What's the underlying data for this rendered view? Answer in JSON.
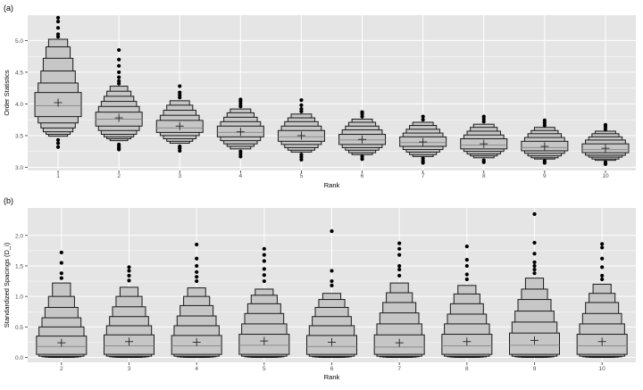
{
  "chart_data": [
    {
      "panel_label": "(a)",
      "type": "letter-value-boxplot",
      "xlabel": "Rank",
      "ylabel": "Order Statistics",
      "categories": [
        "1",
        "2",
        "3",
        "4",
        "5",
        "6",
        "7",
        "8",
        "9",
        "10"
      ],
      "ylim": [
        2.95,
        5.4
      ],
      "yticks": [
        "3.0",
        "3.5",
        "4.0",
        "4.5",
        "5.0"
      ],
      "grid": true,
      "colors": {
        "panel_bg": "#e5e5e5",
        "grid": "#ffffff",
        "box_fill": "#c6c6c6",
        "outline": "#1a1a1a",
        "median": "#8c8c8c"
      },
      "groups": [
        {
          "category": "1",
          "median": 3.97,
          "mean": 4.02,
          "levels": [
            [
              3.8,
              4.18,
              1.0
            ],
            [
              3.7,
              4.33,
              0.86
            ],
            [
              3.62,
              4.52,
              0.74
            ],
            [
              3.56,
              4.72,
              0.64
            ],
            [
              3.52,
              4.9,
              0.52
            ],
            [
              3.49,
              5.02,
              0.41
            ]
          ],
          "outliers": [
            3.32,
            3.38,
            3.43,
            5.06,
            5.1,
            5.2,
            5.3,
            5.36
          ]
        },
        {
          "category": "2",
          "median": 3.76,
          "mean": 3.78,
          "levels": [
            [
              3.65,
              3.87,
              1.0
            ],
            [
              3.58,
              3.96,
              0.88
            ],
            [
              3.52,
              4.04,
              0.76
            ],
            [
              3.48,
              4.12,
              0.64
            ],
            [
              3.45,
              4.2,
              0.52
            ],
            [
              3.42,
              4.28,
              0.38
            ]
          ],
          "outliers": [
            3.28,
            3.3,
            3.33,
            3.36,
            4.32,
            4.36,
            4.42,
            4.5,
            4.6,
            4.7,
            4.85
          ]
        },
        {
          "category": "3",
          "median": 3.62,
          "mean": 3.65,
          "levels": [
            [
              3.55,
              3.74,
              1.0
            ],
            [
              3.5,
              3.82,
              0.84
            ],
            [
              3.45,
              3.9,
              0.7
            ],
            [
              3.41,
              3.98,
              0.56
            ],
            [
              3.38,
              4.05,
              0.42
            ]
          ],
          "outliers": [
            3.26,
            3.3,
            3.33,
            4.1,
            4.14,
            4.18,
            4.28
          ]
        },
        {
          "category": "4",
          "median": 3.55,
          "mean": 3.56,
          "levels": [
            [
              3.48,
              3.65,
              1.0
            ],
            [
              3.42,
              3.72,
              0.86
            ],
            [
              3.37,
              3.79,
              0.72
            ],
            [
              3.33,
              3.86,
              0.58
            ],
            [
              3.29,
              3.92,
              0.44
            ]
          ],
          "outliers": [
            3.17,
            3.21,
            3.25,
            3.96,
            4.0,
            4.04,
            4.07
          ]
        },
        {
          "category": "5",
          "median": 3.48,
          "mean": 3.5,
          "levels": [
            [
              3.41,
              3.58,
              1.0
            ],
            [
              3.36,
              3.65,
              0.86
            ],
            [
              3.31,
              3.72,
              0.72
            ],
            [
              3.27,
              3.78,
              0.58
            ],
            [
              3.24,
              3.84,
              0.44
            ]
          ],
          "outliers": [
            3.12,
            3.16,
            3.2,
            3.88,
            3.92,
            3.98,
            4.06
          ]
        },
        {
          "category": "6",
          "median": 3.43,
          "mean": 3.44,
          "levels": [
            [
              3.36,
              3.52,
              1.0
            ],
            [
              3.31,
              3.59,
              0.86
            ],
            [
              3.27,
              3.65,
              0.72
            ],
            [
              3.23,
              3.71,
              0.58
            ],
            [
              3.2,
              3.76,
              0.44
            ]
          ],
          "outliers": [
            3.13,
            3.17,
            3.8,
            3.84,
            3.87
          ]
        },
        {
          "category": "7",
          "median": 3.39,
          "mean": 3.4,
          "levels": [
            [
              3.33,
              3.48,
              1.0
            ],
            [
              3.28,
              3.54,
              0.86
            ],
            [
              3.24,
              3.6,
              0.72
            ],
            [
              3.2,
              3.66,
              0.58
            ],
            [
              3.17,
              3.71,
              0.44
            ]
          ],
          "outliers": [
            3.07,
            3.1,
            3.14,
            3.75,
            3.8
          ]
        },
        {
          "category": "8",
          "median": 3.35,
          "mean": 3.37,
          "levels": [
            [
              3.29,
              3.45,
              1.0
            ],
            [
              3.25,
              3.51,
              0.86
            ],
            [
              3.21,
              3.57,
              0.72
            ],
            [
              3.18,
              3.63,
              0.58
            ],
            [
              3.15,
              3.68,
              0.44
            ]
          ],
          "outliers": [
            3.08,
            3.11,
            3.72,
            3.76,
            3.8
          ]
        },
        {
          "category": "9",
          "median": 3.31,
          "mean": 3.33,
          "levels": [
            [
              3.26,
              3.41,
              1.0
            ],
            [
              3.22,
              3.47,
              0.86
            ],
            [
              3.18,
              3.53,
              0.72
            ],
            [
              3.15,
              3.58,
              0.58
            ],
            [
              3.13,
              3.63,
              0.44
            ]
          ],
          "outliers": [
            3.07,
            3.1,
            3.66,
            3.7,
            3.74
          ]
        },
        {
          "category": "10",
          "median": 3.28,
          "mean": 3.3,
          "levels": [
            [
              3.23,
              3.37,
              1.0
            ],
            [
              3.19,
              3.43,
              0.86
            ],
            [
              3.16,
              3.48,
              0.72
            ],
            [
              3.13,
              3.53,
              0.58
            ],
            [
              3.11,
              3.57,
              0.44
            ]
          ],
          "outliers": [
            3.05,
            3.08,
            3.6,
            3.64,
            3.67
          ]
        }
      ]
    },
    {
      "panel_label": "(b)",
      "type": "letter-value-boxplot",
      "xlabel": "Rank",
      "ylabel": "Standardized Spacings (D_i)",
      "categories": [
        "2",
        "3",
        "4",
        "5",
        "6",
        "7",
        "8",
        "9",
        "10"
      ],
      "ylim": [
        -0.08,
        2.45
      ],
      "yticks": [
        "0.0",
        "0.5",
        "1.0",
        "1.5",
        "2.0"
      ],
      "grid": true,
      "colors": {
        "panel_bg": "#e5e5e5",
        "grid": "#ffffff",
        "box_fill": "#c6c6c6",
        "outline": "#1a1a1a",
        "median": "#8c8c8c"
      },
      "groups": [
        {
          "category": "2",
          "median": 0.18,
          "mean": 0.24,
          "levels": [
            [
              0.05,
              0.35,
              1.0
            ],
            [
              0.02,
              0.5,
              0.9
            ],
            [
              0.01,
              0.65,
              0.78
            ],
            [
              0.005,
              0.82,
              0.66
            ],
            [
              0.002,
              1.0,
              0.52
            ],
            [
              0.001,
              1.22,
              0.36
            ]
          ],
          "outliers": [
            1.3,
            1.38,
            1.55,
            1.72
          ]
        },
        {
          "category": "3",
          "median": 0.19,
          "mean": 0.26,
          "levels": [
            [
              0.05,
              0.37,
              1.0
            ],
            [
              0.02,
              0.52,
              0.9
            ],
            [
              0.01,
              0.67,
              0.78
            ],
            [
              0.005,
              0.83,
              0.66
            ],
            [
              0.002,
              1.0,
              0.52
            ],
            [
              0.001,
              1.15,
              0.36
            ]
          ],
          "outliers": [
            1.26,
            1.34,
            1.42,
            1.48
          ]
        },
        {
          "category": "4",
          "median": 0.19,
          "mean": 0.25,
          "levels": [
            [
              0.05,
              0.36,
              1.0
            ],
            [
              0.02,
              0.52,
              0.9
            ],
            [
              0.01,
              0.68,
              0.78
            ],
            [
              0.005,
              0.85,
              0.66
            ],
            [
              0.002,
              1.0,
              0.52
            ],
            [
              0.001,
              1.14,
              0.36
            ]
          ],
          "outliers": [
            1.25,
            1.32,
            1.4,
            1.5,
            1.62,
            1.85
          ]
        },
        {
          "category": "5",
          "median": 0.2,
          "mean": 0.27,
          "levels": [
            [
              0.05,
              0.38,
              1.0
            ],
            [
              0.02,
              0.55,
              0.9
            ],
            [
              0.01,
              0.72,
              0.78
            ],
            [
              0.005,
              0.88,
              0.66
            ],
            [
              0.002,
              1.02,
              0.52
            ],
            [
              0.001,
              1.12,
              0.36
            ]
          ],
          "outliers": [
            1.25,
            1.35,
            1.45,
            1.58,
            1.68,
            1.78
          ]
        },
        {
          "category": "6",
          "median": 0.18,
          "mean": 0.25,
          "levels": [
            [
              0.05,
              0.36,
              1.0
            ],
            [
              0.02,
              0.52,
              0.9
            ],
            [
              0.01,
              0.67,
              0.78
            ],
            [
              0.005,
              0.82,
              0.66
            ],
            [
              0.002,
              0.95,
              0.52
            ],
            [
              0.001,
              1.05,
              0.36
            ]
          ],
          "outliers": [
            1.18,
            1.25,
            1.42,
            2.07
          ]
        },
        {
          "category": "7",
          "median": 0.17,
          "mean": 0.24,
          "levels": [
            [
              0.05,
              0.37,
              1.0
            ],
            [
              0.02,
              0.55,
              0.9
            ],
            [
              0.01,
              0.73,
              0.78
            ],
            [
              0.005,
              0.9,
              0.66
            ],
            [
              0.002,
              1.06,
              0.52
            ],
            [
              0.001,
              1.22,
              0.36
            ]
          ],
          "outliers": [
            1.34,
            1.44,
            1.5,
            1.68,
            1.78,
            1.87
          ]
        },
        {
          "category": "8",
          "median": 0.19,
          "mean": 0.26,
          "levels": [
            [
              0.05,
              0.38,
              1.0
            ],
            [
              0.02,
              0.55,
              0.9
            ],
            [
              0.01,
              0.71,
              0.78
            ],
            [
              0.005,
              0.88,
              0.66
            ],
            [
              0.002,
              1.04,
              0.52
            ],
            [
              0.001,
              1.18,
              0.36
            ]
          ],
          "outliers": [
            1.28,
            1.36,
            1.5,
            1.6,
            1.82
          ]
        },
        {
          "category": "9",
          "median": 0.2,
          "mean": 0.28,
          "levels": [
            [
              0.05,
              0.4,
              1.0
            ],
            [
              0.02,
              0.58,
              0.9
            ],
            [
              0.01,
              0.76,
              0.78
            ],
            [
              0.005,
              0.95,
              0.66
            ],
            [
              0.002,
              1.12,
              0.52
            ],
            [
              0.001,
              1.3,
              0.36
            ]
          ],
          "outliers": [
            1.38,
            1.44,
            1.5,
            1.56,
            1.7,
            1.88,
            2.35
          ]
        },
        {
          "category": "10",
          "median": 0.19,
          "mean": 0.26,
          "levels": [
            [
              0.05,
              0.38,
              1.0
            ],
            [
              0.02,
              0.55,
              0.9
            ],
            [
              0.01,
              0.72,
              0.78
            ],
            [
              0.005,
              0.9,
              0.66
            ],
            [
              0.002,
              1.05,
              0.52
            ],
            [
              0.001,
              1.2,
              0.36
            ]
          ],
          "outliers": [
            1.28,
            1.34,
            1.48,
            1.62,
            1.8,
            1.86
          ]
        }
      ]
    }
  ]
}
